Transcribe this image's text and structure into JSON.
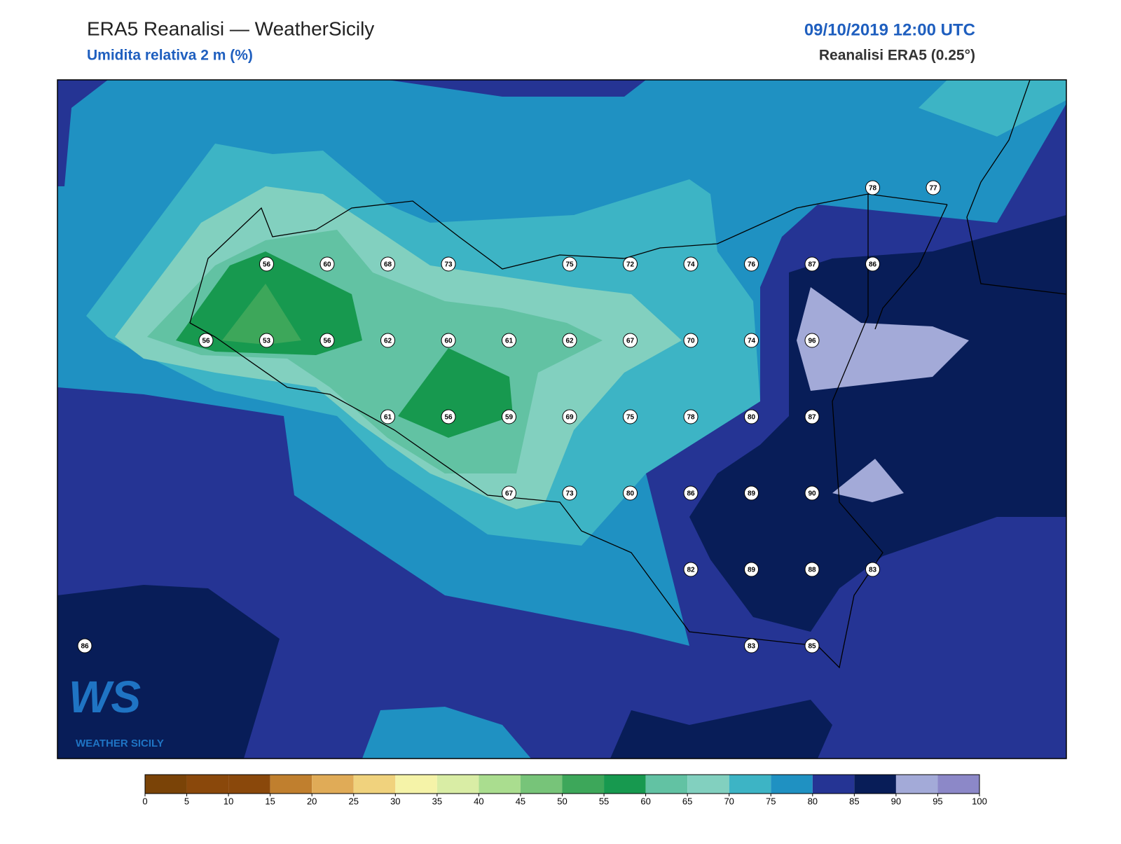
{
  "header": {
    "title": "ERA5 Reanalisi — WeatherSicily",
    "subtitle": "Umidita relativa 2 m (%)",
    "date": "09/10/2019 12:00 UTC",
    "source": "Reanalisi ERA5 (0.25°)"
  },
  "stations": {
    "rows": [
      [
        null,
        null,
        null,
        null,
        null,
        null,
        null,
        null,
        null,
        null,
        null,
        null,
        null,
        78,
        77
      ],
      [
        null,
        null,
        null,
        56,
        60,
        68,
        73,
        null,
        75,
        72,
        74,
        76,
        87,
        86,
        null
      ],
      [
        null,
        null,
        56,
        53,
        56,
        62,
        60,
        61,
        62,
        67,
        70,
        74,
        96,
        null,
        null
      ],
      [
        null,
        null,
        null,
        null,
        null,
        61,
        56,
        59,
        69,
        75,
        78,
        80,
        87,
        null,
        null
      ],
      [
        null,
        null,
        null,
        null,
        null,
        null,
        null,
        67,
        73,
        80,
        86,
        89,
        90,
        null,
        null
      ],
      [
        null,
        null,
        null,
        null,
        null,
        null,
        null,
        null,
        null,
        null,
        82,
        89,
        88,
        83,
        null
      ],
      [
        86,
        null,
        null,
        null,
        null,
        null,
        null,
        null,
        null,
        null,
        null,
        83,
        85,
        null,
        null
      ]
    ]
  },
  "colorbar": {
    "ticks": [
      0,
      5,
      10,
      15,
      20,
      25,
      30,
      35,
      40,
      45,
      50,
      55,
      60,
      65,
      70,
      75,
      80,
      85,
      90,
      95,
      100
    ],
    "colors": [
      "#7a4307",
      "#8a480b",
      "#8a480b",
      "#c07f2e",
      "#e0ab57",
      "#f0d27d",
      "#f5f3a8",
      "#d9eda5",
      "#aadd8f",
      "#77c479",
      "#3da75a",
      "#17994f",
      "#62c2a3",
      "#82d0bf",
      "#3db4c5",
      "#1f91c2",
      "#253494",
      "#081d58",
      "#a3aad8",
      "#8c88c8"
    ]
  },
  "logo": {
    "mark": "WS",
    "text": "WEATHER SICILY"
  }
}
